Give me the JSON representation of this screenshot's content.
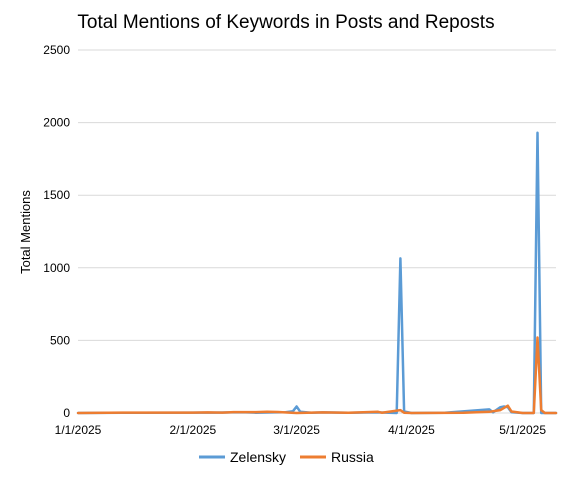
{
  "chart_data": {
    "type": "line",
    "title": "Total Mentions of Keywords in Posts and Reposts",
    "xlabel": "",
    "ylabel": "Total Mentions",
    "ylim": [
      0,
      2500
    ],
    "yticks": [
      "0",
      "500",
      "1000",
      "1500",
      "2000",
      "2500"
    ],
    "xlim": [
      "2025-01-01",
      "2025-05-10"
    ],
    "xticks": [
      {
        "date": "2025-01-01",
        "label": "1/1/2025"
      },
      {
        "date": "2025-02-01",
        "label": "2/1/2025"
      },
      {
        "date": "2025-03-01",
        "label": "3/1/2025"
      },
      {
        "date": "2025-04-01",
        "label": "4/1/2025"
      },
      {
        "date": "2025-05-01",
        "label": "5/1/2025"
      }
    ],
    "grid": true,
    "legend_position": "bottom",
    "series": [
      {
        "name": "Zelensky",
        "color": "#5b9bd5",
        "points": [
          [
            "2025-01-01",
            0
          ],
          [
            "2025-01-13",
            2
          ],
          [
            "2025-01-18",
            2
          ],
          [
            "2025-02-03",
            3
          ],
          [
            "2025-02-07",
            3
          ],
          [
            "2025-02-14",
            5
          ],
          [
            "2025-02-18",
            2
          ],
          [
            "2025-02-23",
            4
          ],
          [
            "2025-02-26",
            5
          ],
          [
            "2025-02-28",
            12
          ],
          [
            "2025-03-01",
            45
          ],
          [
            "2025-03-02",
            8
          ],
          [
            "2025-03-05",
            2
          ],
          [
            "2025-03-08",
            4
          ],
          [
            "2025-03-15",
            2
          ],
          [
            "2025-03-23",
            4
          ],
          [
            "2025-03-28",
            0
          ],
          [
            "2025-03-29",
            1065
          ],
          [
            "2025-03-30",
            10
          ],
          [
            "2025-04-01",
            0
          ],
          [
            "2025-04-10",
            2
          ],
          [
            "2025-04-22",
            25
          ],
          [
            "2025-04-23",
            5
          ],
          [
            "2025-04-25",
            40
          ],
          [
            "2025-04-26",
            45
          ],
          [
            "2025-04-27",
            40
          ],
          [
            "2025-04-28",
            5
          ],
          [
            "2025-05-01",
            0
          ],
          [
            "2025-05-04",
            0
          ],
          [
            "2025-05-05",
            1930
          ],
          [
            "2025-05-06",
            0
          ],
          [
            "2025-05-10",
            0
          ]
        ]
      },
      {
        "name": "Russia",
        "color": "#ed7d31",
        "points": [
          [
            "2025-01-01",
            0
          ],
          [
            "2025-01-13",
            3
          ],
          [
            "2025-01-18",
            3
          ],
          [
            "2025-02-01",
            3
          ],
          [
            "2025-02-05",
            4
          ],
          [
            "2025-02-09",
            3
          ],
          [
            "2025-02-12",
            6
          ],
          [
            "2025-02-18",
            6
          ],
          [
            "2025-02-21",
            8
          ],
          [
            "2025-02-24",
            7
          ],
          [
            "2025-02-27",
            3
          ],
          [
            "2025-03-01",
            0
          ],
          [
            "2025-03-08",
            4
          ],
          [
            "2025-03-15",
            2
          ],
          [
            "2025-03-23",
            8
          ],
          [
            "2025-03-24",
            2
          ],
          [
            "2025-03-29",
            20
          ],
          [
            "2025-03-30",
            2
          ],
          [
            "2025-04-01",
            0
          ],
          [
            "2025-04-15",
            2
          ],
          [
            "2025-04-22",
            8
          ],
          [
            "2025-04-25",
            20
          ],
          [
            "2025-04-27",
            50
          ],
          [
            "2025-04-28",
            10
          ],
          [
            "2025-05-01",
            0
          ],
          [
            "2025-05-04",
            0
          ],
          [
            "2025-05-05",
            520
          ],
          [
            "2025-05-06",
            20
          ],
          [
            "2025-05-07",
            0
          ],
          [
            "2025-05-10",
            0
          ]
        ]
      }
    ]
  }
}
